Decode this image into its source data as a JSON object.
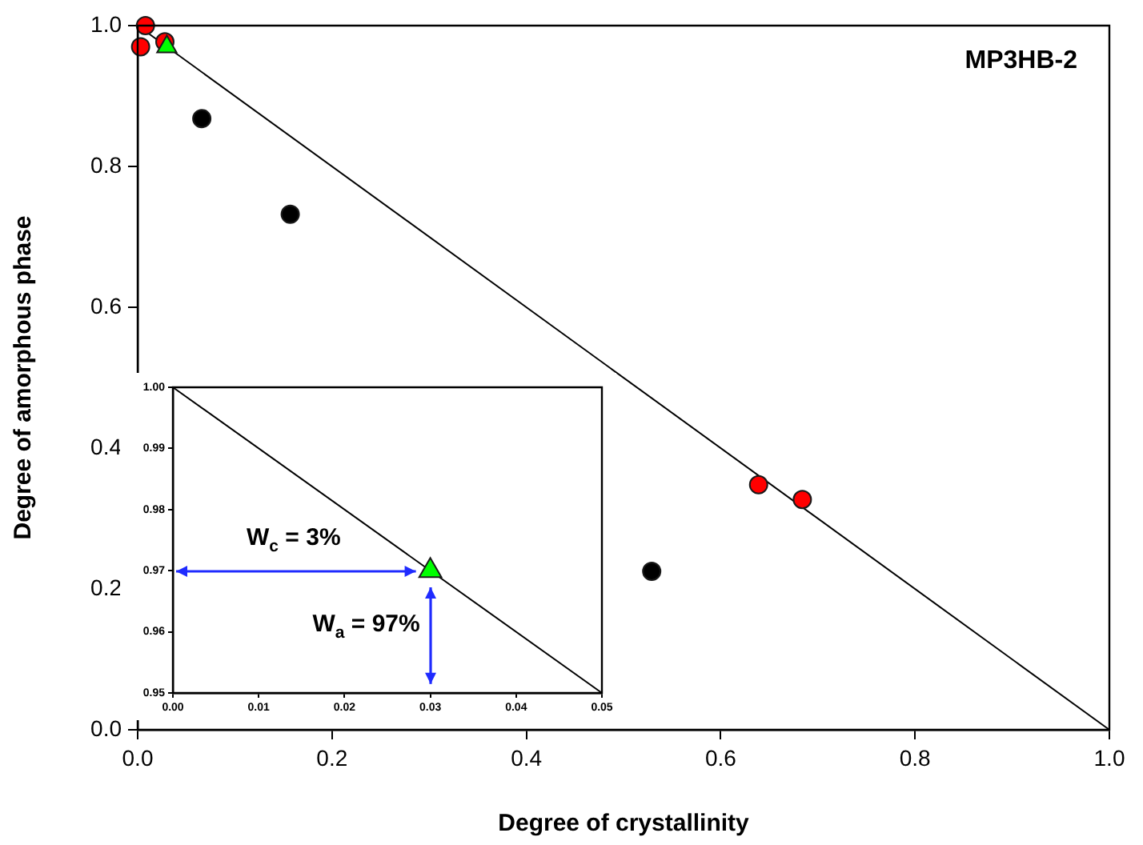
{
  "chart_data": [
    {
      "type": "scatter",
      "title": "MP3HB-2",
      "xlabel": "Degree of crystallinity",
      "ylabel": "Degree of amorphous phase",
      "series": [
        {
          "type": "line",
          "x": [
            0,
            1
          ],
          "values": [
            1,
            0
          ],
          "color": "#000000",
          "marker": "none"
        },
        {
          "x": [
            0.008,
            0.003,
            0.028,
            0.639,
            0.684
          ],
          "values": [
            1.0,
            0.97,
            0.977,
            0.348,
            0.327
          ],
          "color": "#ff0000",
          "marker": "circle"
        },
        {
          "x": [
            0.066,
            0.157,
            0.529
          ],
          "values": [
            0.868,
            0.732,
            0.225
          ],
          "color": "#000000",
          "marker": "circle"
        },
        {
          "x": [
            0.03
          ],
          "values": [
            0.97
          ],
          "color": "#00ff00",
          "marker": "triangle"
        }
      ],
      "xlim": [
        0,
        1
      ],
      "ylim": [
        0,
        1
      ],
      "xticks": [
        {
          "value": 0,
          "label": "0.0"
        },
        {
          "value": 0.2,
          "label": "0.2"
        },
        {
          "value": 0.4,
          "label": "0.4"
        },
        {
          "value": 0.6,
          "label": "0.6"
        },
        {
          "value": 0.8,
          "label": "0.8"
        },
        {
          "value": 1,
          "label": "1.0"
        }
      ],
      "yticks": [
        {
          "value": 0,
          "label": "0.0"
        },
        {
          "value": 0.2,
          "label": "0.2"
        },
        {
          "value": 0.4,
          "label": "0.4"
        },
        {
          "value": 0.6,
          "label": "0.6"
        },
        {
          "value": 0.8,
          "label": "0.8"
        },
        {
          "value": 1,
          "label": "1.0"
        }
      ],
      "legend": false,
      "grid": false
    },
    {
      "type": "scatter",
      "series": [
        {
          "type": "line",
          "x": [
            0,
            0.05
          ],
          "values": [
            1,
            0.95
          ],
          "color": "#000000",
          "marker": "none"
        },
        {
          "x": [
            0.03
          ],
          "values": [
            0.97
          ],
          "color": "#00ff00",
          "marker": "triangle"
        }
      ],
      "xlim": [
        0,
        0.05
      ],
      "ylim": [
        0.95,
        1.0
      ],
      "xticks": [
        {
          "value": 0,
          "label": "0.00"
        },
        {
          "value": 0.01,
          "label": "0.01"
        },
        {
          "value": 0.02,
          "label": "0.02"
        },
        {
          "value": 0.03,
          "label": "0.03"
        },
        {
          "value": 0.04,
          "label": "0.04"
        },
        {
          "value": 0.05,
          "label": "0.05"
        }
      ],
      "yticks": [
        {
          "value": 0.95,
          "label": "0.95"
        },
        {
          "value": 0.96,
          "label": "0.96"
        },
        {
          "value": 0.97,
          "label": "0.97"
        },
        {
          "value": 0.98,
          "label": "0.98"
        },
        {
          "value": 0.99,
          "label": "0.99"
        },
        {
          "value": 1.0,
          "label": "1.00"
        }
      ],
      "annotations": [
        "W$_{c}$ = 3%",
        "W$_{a}$ = 97%"
      ],
      "legend": false,
      "grid": false
    }
  ]
}
